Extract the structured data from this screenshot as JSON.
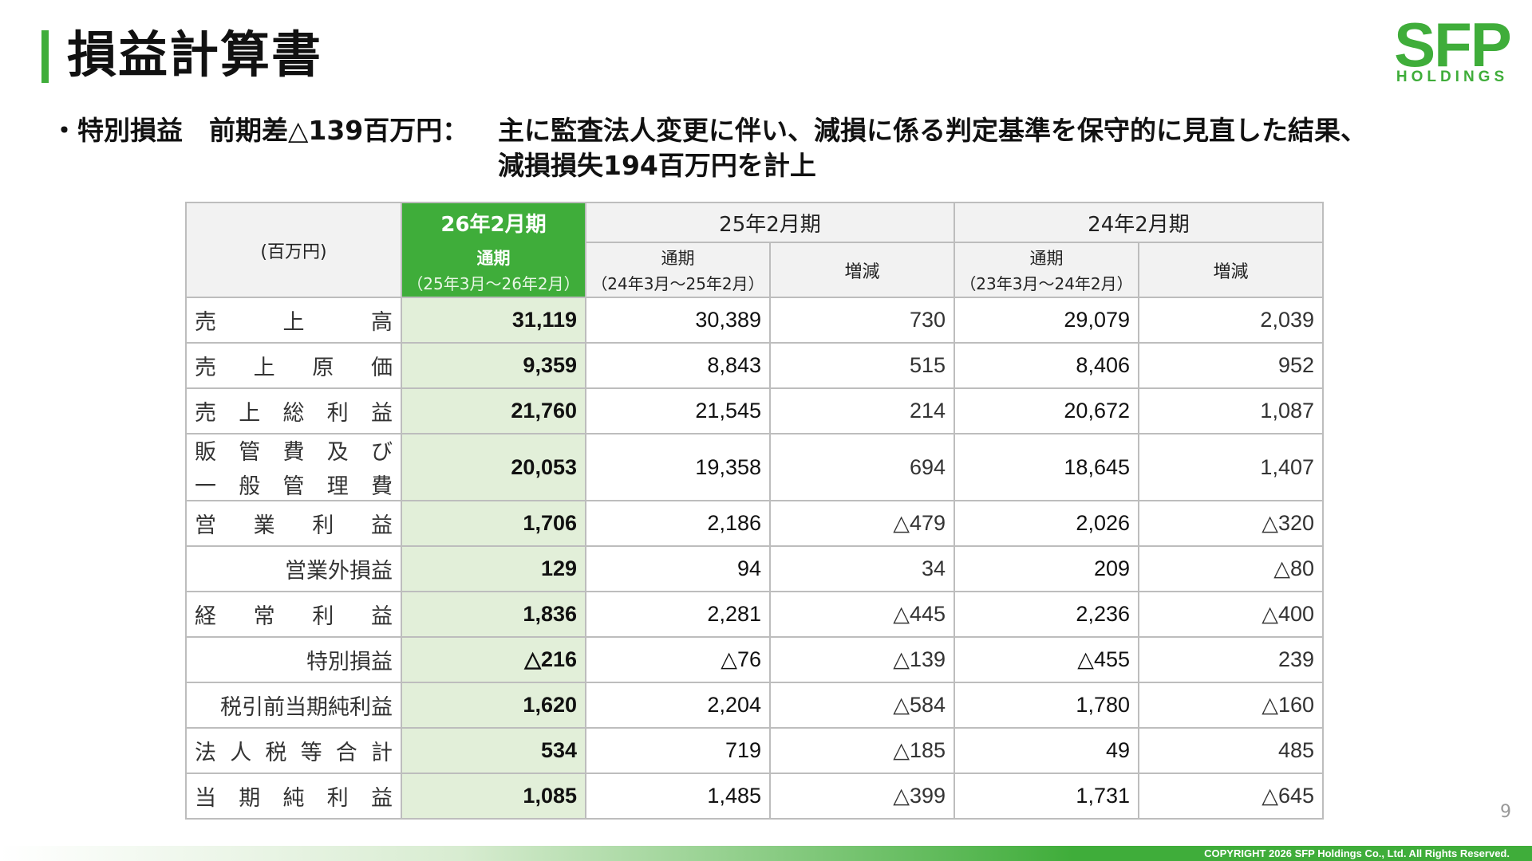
{
  "title": "損益計算書",
  "logo": {
    "main": "SFP",
    "sub": "HOLDINGS"
  },
  "note": {
    "bullet": "・特別損益　前期差△139百万円：",
    "line1": "主に監査法人変更に伴い、減損に係る判定基準を保守的に見直した結果、",
    "line2": "減損損失194百万円を計上"
  },
  "table": {
    "unit": "(百万円)",
    "current": {
      "period": "26年2月期",
      "label": "通期",
      "range": "（25年3月～26年2月）"
    },
    "prev1": {
      "period": "25年2月期",
      "label": "通期",
      "range": "（24年3月～25年2月）",
      "diff": "増減"
    },
    "prev2": {
      "period": "24年2月期",
      "label": "通期",
      "range": "（23年3月～24年2月）",
      "diff": "増減"
    },
    "rows": [
      {
        "label": "売上高",
        "chars": [
          "売",
          "上",
          "高"
        ],
        "cur": "31,119",
        "p1": "30,389",
        "d1": "730",
        "p2": "29,079",
        "d2": "2,039"
      },
      {
        "label": "売上原価",
        "chars": [
          "売",
          "上",
          "原",
          "価"
        ],
        "cur": "9,359",
        "p1": "8,843",
        "d1": "515",
        "p2": "8,406",
        "d2": "952"
      },
      {
        "label": "売上総利益",
        "chars": [
          "売",
          "上",
          "総",
          "利",
          "益"
        ],
        "cur": "21,760",
        "p1": "21,545",
        "d1": "214",
        "p2": "20,672",
        "d2": "1,087"
      },
      {
        "label": "販管費及び一般管理費",
        "line1": [
          "販",
          "管",
          "費",
          "及",
          "び"
        ],
        "line2": [
          "一",
          "般",
          "管",
          "理",
          "費"
        ],
        "cur": "20,053",
        "p1": "19,358",
        "d1": "694",
        "p2": "18,645",
        "d2": "1,407"
      },
      {
        "label": "営業利益",
        "chars": [
          "営",
          "業",
          "利",
          "益"
        ],
        "cur": "1,706",
        "p1": "2,186",
        "d1": "△479",
        "p2": "2,026",
        "d2": "△320"
      },
      {
        "label": "営業外損益",
        "cur": "129",
        "p1": "94",
        "d1": "34",
        "p2": "209",
        "d2": "△80"
      },
      {
        "label": "経常利益",
        "chars": [
          "経",
          "常",
          "利",
          "益"
        ],
        "cur": "1,836",
        "p1": "2,281",
        "d1": "△445",
        "p2": "2,236",
        "d2": "△400"
      },
      {
        "label": "特別損益",
        "cur": "△216",
        "p1": "△76",
        "d1": "△139",
        "p2": "△455",
        "d2": "239"
      },
      {
        "label": "税引前当期純利益",
        "cur": "1,620",
        "p1": "2,204",
        "d1": "△584",
        "p2": "1,780",
        "d2": "△160"
      },
      {
        "label": "法人税等合計",
        "chars": [
          "法",
          "人",
          "税",
          "等",
          "合",
          "計"
        ],
        "cur": "534",
        "p1": "719",
        "d1": "△185",
        "p2": "49",
        "d2": "485"
      },
      {
        "label": "当期純利益",
        "chars": [
          "当",
          "期",
          "純",
          "利",
          "益"
        ],
        "cur": "1,085",
        "p1": "1,485",
        "d1": "△399",
        "p2": "1,731",
        "d2": "△645"
      }
    ]
  },
  "page_number": "9",
  "copyright": "COPYRIGHT 2026 SFP Holdings Co., Ltd. All Rights Reserved.",
  "colors": {
    "accent": "#3fad3a",
    "current_col_bg": "#e2efd9",
    "header_bg": "#f2f2f2"
  }
}
